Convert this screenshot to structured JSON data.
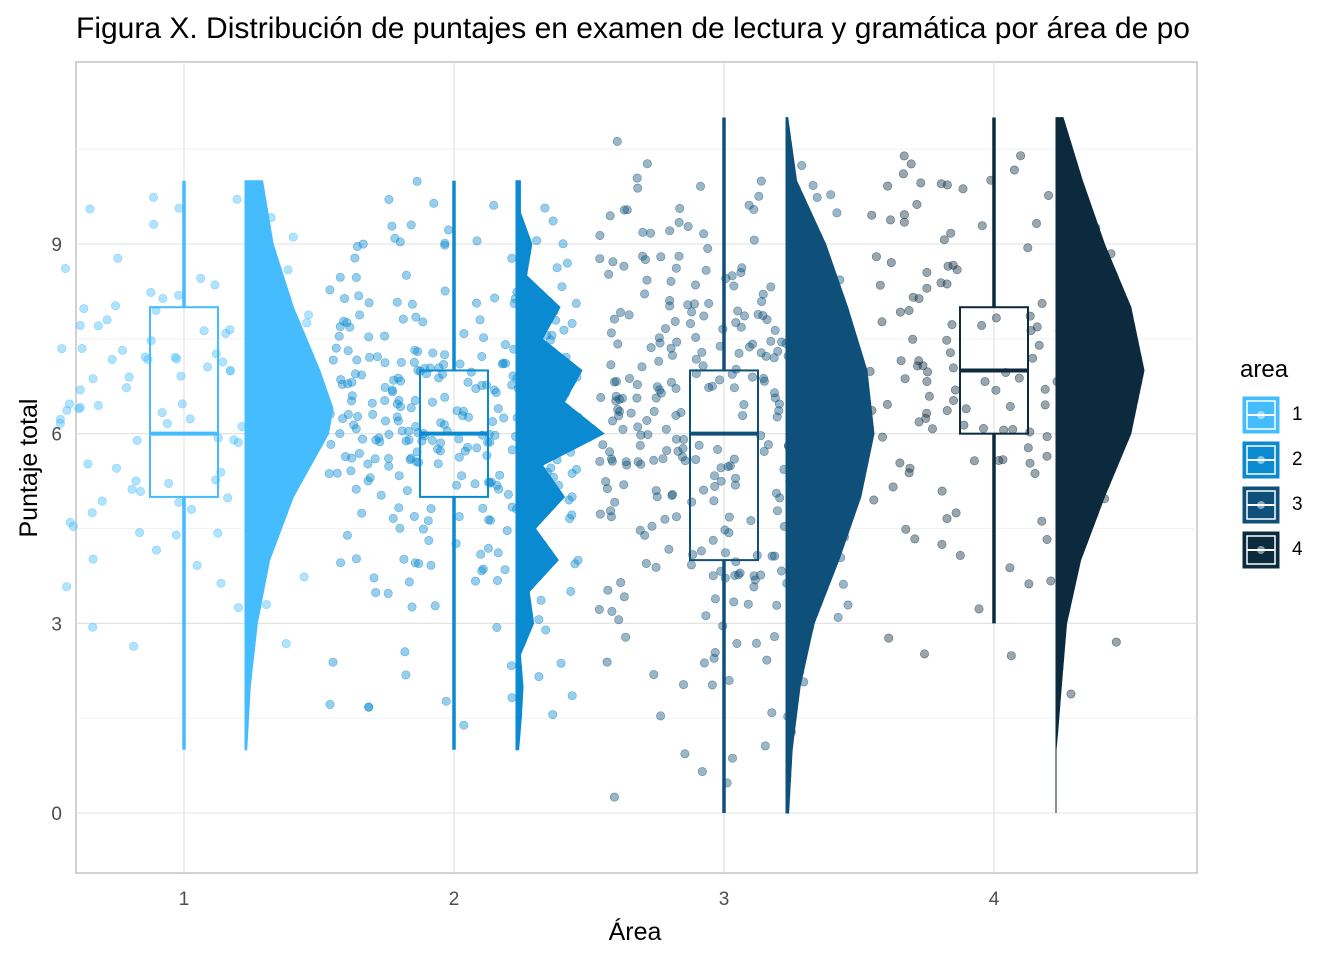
{
  "chart_data": {
    "type": "raincloud",
    "title": "Figura X. Distribución de puntajes en examen de lectura y gramática por área de po",
    "xlabel": "Área",
    "ylabel": "Puntaje total",
    "ylim": [
      -0.9,
      11.6
    ],
    "yticks": [
      0,
      3,
      6,
      9
    ],
    "categories": [
      "1",
      "2",
      "3",
      "4"
    ],
    "grid": true,
    "legend": {
      "title": "area",
      "position": "right",
      "entries": [
        "1",
        "2",
        "3",
        "4"
      ]
    },
    "colors": [
      "#45BCFD",
      "#0A8AD0",
      "#0E5079",
      "#0B2A3E"
    ],
    "series": [
      {
        "area": "1",
        "n": 110,
        "min": 1,
        "q1": 5,
        "median": 6,
        "q3": 8,
        "max": 10,
        "density": [
          [
            1,
            0.02
          ],
          [
            2,
            0.06
          ],
          [
            3,
            0.14
          ],
          [
            4,
            0.28
          ],
          [
            5,
            0.55
          ],
          [
            6,
            0.95
          ],
          [
            6.4,
            1.0
          ],
          [
            7,
            0.85
          ],
          [
            8,
            0.55
          ],
          [
            9,
            0.32
          ],
          [
            10,
            0.2
          ]
        ]
      },
      {
        "area": "2",
        "n": 330,
        "min": 1,
        "q1": 5,
        "median": 6,
        "q3": 7,
        "max": 10,
        "density": [
          [
            1,
            0.03
          ],
          [
            1.5,
            0.06
          ],
          [
            2,
            0.08
          ],
          [
            2.5,
            0.05
          ],
          [
            3,
            0.2
          ],
          [
            3.5,
            0.15
          ],
          [
            4,
            0.48
          ],
          [
            4.5,
            0.22
          ],
          [
            5,
            0.55
          ],
          [
            5.5,
            0.3
          ],
          [
            6,
            1.0
          ],
          [
            6.5,
            0.55
          ],
          [
            7,
            0.75
          ],
          [
            7.5,
            0.3
          ],
          [
            8,
            0.5
          ],
          [
            8.5,
            0.12
          ],
          [
            9,
            0.18
          ],
          [
            9.5,
            0.05
          ],
          [
            10,
            0.05
          ]
        ]
      },
      {
        "area": "3",
        "n": 340,
        "min": 0,
        "q1": 4,
        "median": 6,
        "q3": 7,
        "max": 11,
        "density": [
          [
            0,
            0.03
          ],
          [
            1,
            0.07
          ],
          [
            2,
            0.16
          ],
          [
            3,
            0.32
          ],
          [
            4,
            0.6
          ],
          [
            5,
            0.85
          ],
          [
            6,
            1.0
          ],
          [
            7,
            0.92
          ],
          [
            8,
            0.7
          ],
          [
            9,
            0.45
          ],
          [
            10,
            0.12
          ],
          [
            11,
            0.02
          ]
        ]
      },
      {
        "area": "4",
        "n": 140,
        "min": 3,
        "q1": 6,
        "median": 7,
        "q3": 8,
        "max": 11,
        "density": [
          [
            0,
            0.0
          ],
          [
            1,
            0.0
          ],
          [
            1.3,
            0.02
          ],
          [
            2,
            0.06
          ],
          [
            3,
            0.12
          ],
          [
            4,
            0.28
          ],
          [
            5,
            0.55
          ],
          [
            6,
            0.85
          ],
          [
            7,
            1.0
          ],
          [
            8,
            0.85
          ],
          [
            9,
            0.55
          ],
          [
            10,
            0.3
          ],
          [
            11,
            0.08
          ]
        ]
      }
    ]
  }
}
